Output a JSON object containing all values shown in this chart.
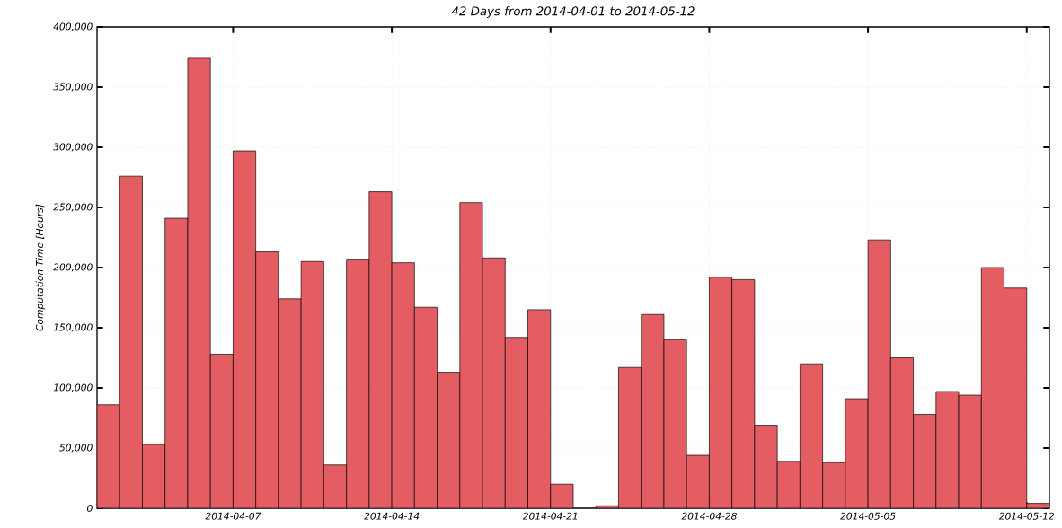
{
  "chart_data": {
    "type": "bar",
    "title": "42 Days from 2014-04-01 to 2014-05-12",
    "ylabel": "Computation Time [Hours]",
    "x": [
      "2014-04-01T12:00",
      "2014-04-02T12:00",
      "2014-04-03T12:00",
      "2014-04-04T12:00",
      "2014-04-05T12:00",
      "2014-04-06T12:00",
      "2014-04-07T12:00",
      "2014-04-08T12:00",
      "2014-04-09T12:00",
      "2014-04-10T12:00",
      "2014-04-11T12:00",
      "2014-04-12T12:00",
      "2014-04-13T12:00",
      "2014-04-14T12:00",
      "2014-04-15T12:00",
      "2014-04-16T12:00",
      "2014-04-17T12:00",
      "2014-04-18T12:00",
      "2014-04-19T12:00",
      "2014-04-20T12:00",
      "2014-04-21T12:00",
      "2014-04-22T12:00",
      "2014-04-23T12:00",
      "2014-04-24T12:00",
      "2014-04-25T12:00",
      "2014-04-26T12:00",
      "2014-04-27T12:00",
      "2014-04-28T12:00",
      "2014-04-29T12:00",
      "2014-04-30T12:00",
      "2014-05-01T12:00",
      "2014-05-02T12:00",
      "2014-05-03T12:00",
      "2014-05-04T12:00",
      "2014-05-05T12:00",
      "2014-05-06T12:00",
      "2014-05-07T12:00",
      "2014-05-08T12:00",
      "2014-05-09T12:00",
      "2014-05-10T12:00",
      "2014-05-11T12:00",
      "2014-05-12T12:00"
    ],
    "values": [
      86000,
      276000,
      53000,
      241000,
      374000,
      128000,
      297000,
      213000,
      174000,
      205000,
      36000,
      207000,
      263000,
      204000,
      167000,
      113000,
      254000,
      208000,
      142000,
      165000,
      20000,
      null,
      2000,
      117000,
      161000,
      140000,
      44000,
      192000,
      190000,
      69000,
      39000,
      120000,
      38000,
      91000,
      223000,
      125000,
      78000,
      97000,
      94000,
      200000,
      183000,
      4000
    ],
    "color": "#e35d63",
    "xlim": [
      "2014-04-01",
      "2014-05-13"
    ],
    "xticks": [
      "2014-04-07",
      "2014-04-14",
      "2014-04-21",
      "2014-04-28",
      "2014-05-05",
      "2014-05-12"
    ],
    "ylim": [
      0,
      400000
    ],
    "yticks": [
      {
        "value": 0,
        "label": "0"
      },
      {
        "value": 50000,
        "label": "50,000"
      },
      {
        "value": 100000,
        "label": "100,000"
      },
      {
        "value": 150000,
        "label": "150,000"
      },
      {
        "value": 200000,
        "label": "200,000"
      },
      {
        "value": 250000,
        "label": "250,000"
      },
      {
        "value": 300000,
        "label": "300,000"
      },
      {
        "value": 350000,
        "label": "350,000"
      },
      {
        "value": 400000,
        "label": "400,000"
      }
    ],
    "grid": true
  }
}
